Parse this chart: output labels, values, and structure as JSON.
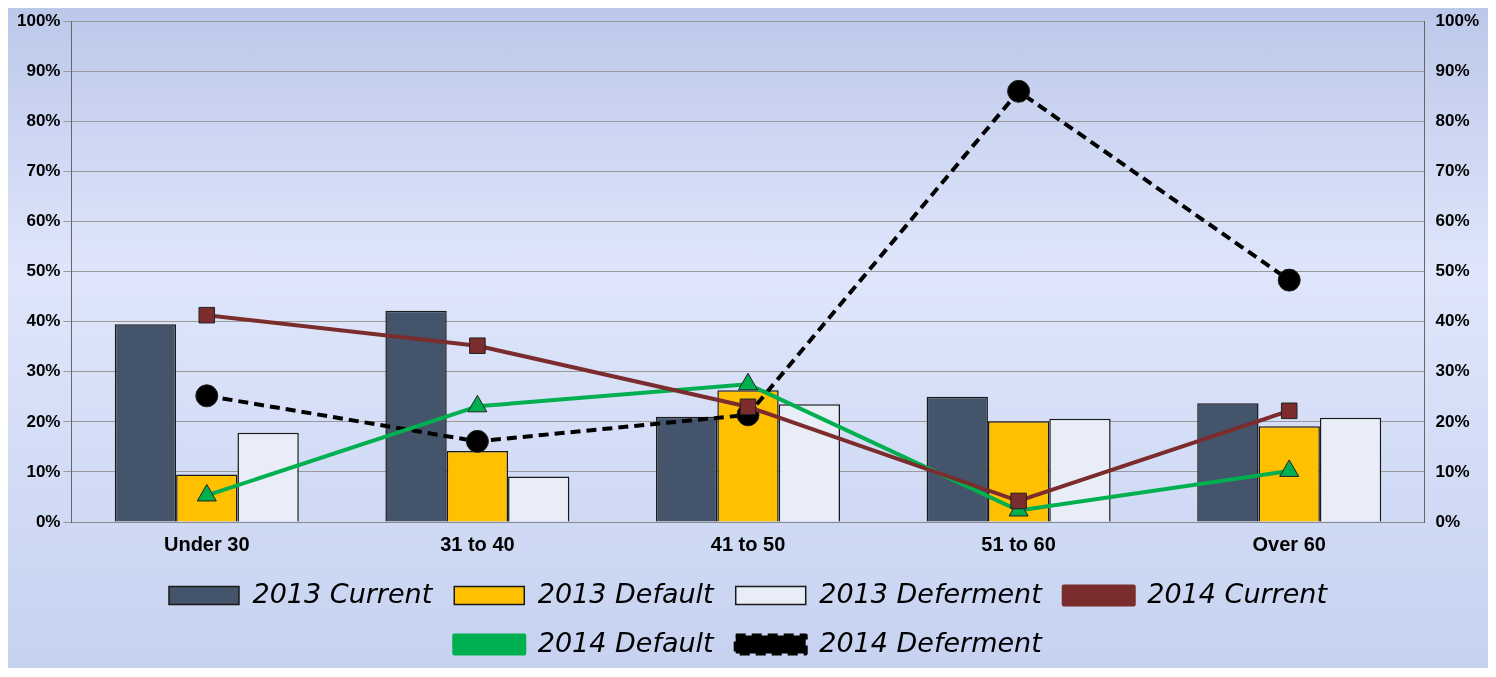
{
  "chart_data": {
    "type": "bar",
    "categories": [
      "Under 30",
      "31 to 40",
      "41 to 50",
      "51 to 60",
      "Over 60"
    ],
    "series": [
      {
        "name": "2013 Current",
        "color": "#44546a",
        "values": [
          39.5,
          42.2,
          21,
          25,
          23.7
        ]
      },
      {
        "name": "2013 Default",
        "color": "#ffc000",
        "values": [
          9.5,
          14.2,
          26.3,
          20.1,
          19.1
        ]
      },
      {
        "name": "2013 Deferment",
        "color": "#e9edf7",
        "values": [
          17.8,
          9.1,
          23.5,
          20.6,
          20.8
        ]
      },
      {
        "type": "line",
        "name": "2014 Current",
        "color": "#7b2c2c",
        "values": [
          41.3,
          35.2,
          23,
          4.2,
          22.2
        ],
        "marker": "square",
        "line_style": "solid"
      },
      {
        "type": "line",
        "name": "2014 Default",
        "color": "#00b050",
        "values": [
          5.3,
          23.1,
          27.5,
          2.3,
          10.2
        ],
        "marker": "triangle",
        "line_style": "solid"
      },
      {
        "type": "line",
        "name": "2014 Deferment",
        "color": "#000000",
        "values": [
          25.2,
          16.1,
          21.4,
          86,
          48.3
        ],
        "marker": "circle",
        "line_style": "dashed"
      }
    ],
    "ylim": [
      0,
      100
    ],
    "yticks": [
      {
        "value": 0,
        "label": "0%"
      },
      {
        "value": 10,
        "label": "10%"
      },
      {
        "value": 20,
        "label": "20%"
      },
      {
        "value": 30,
        "label": "30%"
      },
      {
        "value": 40,
        "label": "40%"
      },
      {
        "value": 50,
        "label": "50%"
      },
      {
        "value": 60,
        "label": "60%"
      },
      {
        "value": 70,
        "label": "70%"
      },
      {
        "value": 80,
        "label": "80%"
      },
      {
        "value": 90,
        "label": "90%"
      },
      {
        "value": 100,
        "label": "100%"
      }
    ],
    "y2lim": [
      0,
      100
    ],
    "y2ticks": [
      {
        "value": 0,
        "label": "0%"
      },
      {
        "value": 10,
        "label": "10%"
      },
      {
        "value": 20,
        "label": "20%"
      },
      {
        "value": 30,
        "label": "30%"
      },
      {
        "value": 40,
        "label": "40%"
      },
      {
        "value": 50,
        "label": "50%"
      },
      {
        "value": 60,
        "label": "60%"
      },
      {
        "value": 70,
        "label": "70%"
      },
      {
        "value": 80,
        "label": "80%"
      },
      {
        "value": 90,
        "label": "90%"
      },
      {
        "value": 100,
        "label": "100%"
      }
    ],
    "grid": "y",
    "legend": "bottom"
  }
}
